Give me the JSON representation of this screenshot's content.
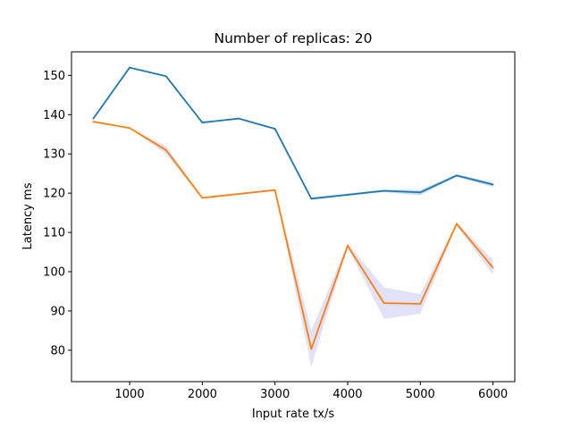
{
  "chart_data": {
    "type": "line",
    "title": "Number of replicas: 20",
    "xlabel": "Input rate tx/s",
    "ylabel": "Latency ms",
    "xlim": [
      200,
      6300
    ],
    "ylim": [
      72,
      156
    ],
    "xticks": [
      1000,
      2000,
      3000,
      4000,
      5000,
      6000
    ],
    "yticks": [
      80,
      90,
      100,
      110,
      120,
      130,
      140,
      150
    ],
    "grid": false,
    "legend": "none",
    "x": [
      500,
      1000,
      1500,
      2000,
      2500,
      3000,
      3500,
      4000,
      4500,
      5000,
      5500,
      6000
    ],
    "series": [
      {
        "color": "#1f77b4",
        "values": [
          139,
          152,
          149.8,
          138,
          139,
          136.4,
          118.6,
          null,
          120.6,
          120.2,
          124.5,
          122.2
        ],
        "band_low": [
          139,
          152,
          149.8,
          137.7,
          139,
          136.2,
          118.3,
          null,
          120.3,
          119.5,
          124.2,
          121.6
        ],
        "band_high": [
          139,
          152,
          149.8,
          138.2,
          139,
          136.6,
          118.9,
          null,
          120.9,
          120.8,
          124.8,
          122.7
        ]
      },
      {
        "color": "#ff7f0e",
        "band_color": "#c8c8f0",
        "values": [
          138.2,
          136.6,
          131,
          118.8,
          null,
          120.8,
          80.3,
          106.6,
          92,
          91.8,
          112.2,
          101
        ],
        "band_low": [
          138.2,
          136.6,
          130,
          118.6,
          null,
          120.6,
          75.8,
          106.2,
          88,
          89.3,
          111.8,
          99.2
        ],
        "band_high": [
          138.2,
          136.6,
          132,
          119,
          null,
          121,
          85,
          107.2,
          96,
          94.3,
          112.6,
          103
        ]
      }
    ]
  }
}
